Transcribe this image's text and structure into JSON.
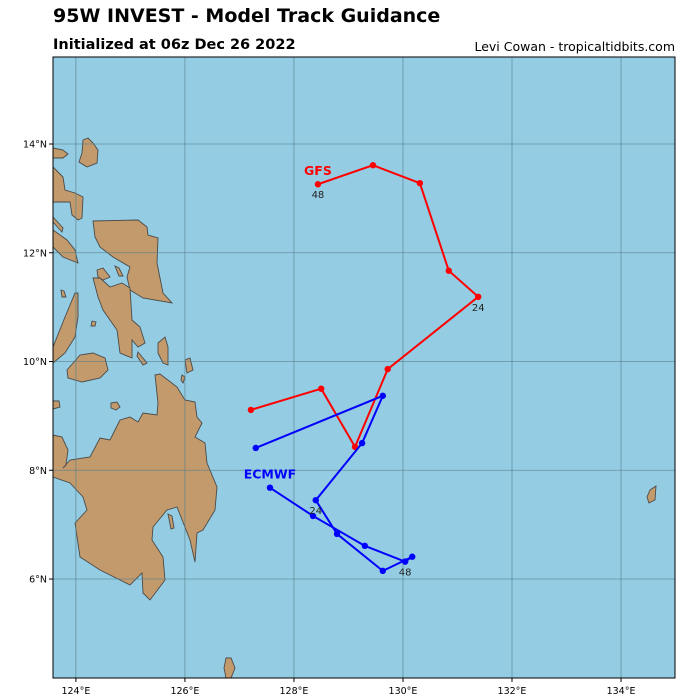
{
  "header": {
    "title": "95W INVEST - Model Track Guidance",
    "subtitle": "Initialized at 06z Dec 26 2022",
    "credit": "Levi Cowan - tropicaltidbits.com"
  },
  "colors": {
    "ocean": "#94cde3",
    "land": "#c29a6b",
    "grid": "#5a7f8c"
  },
  "map": {
    "lon_range": [
      123.58,
      134.99
    ],
    "lat_range": [
      4.18,
      15.6
    ],
    "lon_ticks": [
      {
        "value": 124,
        "label": "124°E"
      },
      {
        "value": 126,
        "label": "126°E"
      },
      {
        "value": 128,
        "label": "128°E"
      },
      {
        "value": 130,
        "label": "130°E"
      },
      {
        "value": 132,
        "label": "132°E"
      },
      {
        "value": 134,
        "label": "134°E"
      }
    ],
    "lat_ticks": [
      {
        "value": 6,
        "label": "6°N"
      },
      {
        "value": 8,
        "label": "8°N"
      },
      {
        "value": 10,
        "label": "10°N"
      },
      {
        "value": 12,
        "label": "12°N"
      },
      {
        "value": 14,
        "label": "14°N"
      }
    ]
  },
  "tracks": [
    {
      "name": "GFS",
      "color": "#ff0000",
      "points": [
        [
          127.21,
          9.11
        ],
        [
          128.5,
          9.5
        ],
        [
          129.12,
          8.43
        ],
        [
          129.72,
          9.86
        ],
        [
          131.38,
          11.19
        ],
        [
          130.84,
          11.67
        ],
        [
          130.31,
          13.28
        ],
        [
          129.45,
          13.61
        ],
        [
          128.44,
          13.26
        ]
      ],
      "labels": [
        {
          "text": "24",
          "index": 4
        },
        {
          "text": "48",
          "index": 8
        }
      ]
    },
    {
      "name": "ECMWF",
      "color": "#0000ff",
      "points": [
        [
          127.3,
          8.41
        ],
        [
          129.63,
          9.37
        ],
        [
          129.25,
          8.5
        ],
        [
          128.4,
          7.45
        ],
        [
          128.79,
          6.83
        ],
        [
          129.63,
          6.15
        ],
        [
          130.17,
          6.41
        ],
        [
          130.04,
          6.32
        ],
        [
          129.3,
          6.61
        ],
        [
          128.35,
          7.16
        ],
        [
          127.56,
          7.68
        ]
      ],
      "labels": [
        {
          "text": "24",
          "index": 3
        },
        {
          "text": "48",
          "index": 7
        }
      ]
    }
  ]
}
